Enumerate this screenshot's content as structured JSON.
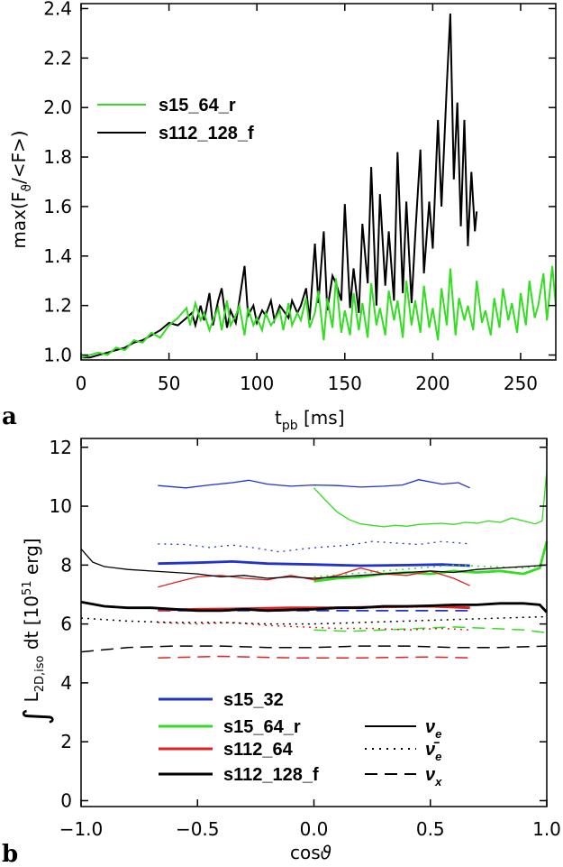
{
  "chart_data": [
    {
      "type": "line",
      "panel_label": "a",
      "xlabel": "t_pb [ms]",
      "ylabel": "max(F_θ/<F>)",
      "xlim": [
        0,
        270
      ],
      "ylim": [
        0.98,
        2.42
      ],
      "xticks": [
        0,
        50,
        100,
        150,
        200,
        250
      ],
      "yticks": [
        1.0,
        1.2,
        1.4,
        1.6,
        1.8,
        2.0,
        2.2,
        2.4
      ],
      "ytick_labels": [
        "1.0",
        "1.2",
        "1.4",
        "1.6",
        "1.8",
        "2.0",
        "2.2",
        "2.4"
      ],
      "legend_placement": "upper-left",
      "series": [
        {
          "name": "s15_64_r",
          "color": "#33dd22",
          "x": [
            0,
            5,
            10,
            15,
            20,
            25,
            30,
            35,
            40,
            45,
            50,
            55,
            60,
            62,
            65,
            68,
            70,
            73,
            75,
            78,
            80,
            83,
            85,
            88,
            90,
            93,
            95,
            98,
            100,
            103,
            105,
            108,
            110,
            113,
            115,
            118,
            120,
            123,
            125,
            128,
            130,
            133,
            135,
            138,
            140,
            143,
            145,
            148,
            150,
            153,
            155,
            158,
            160,
            163,
            165,
            168,
            170,
            173,
            175,
            178,
            180,
            183,
            185,
            188,
            190,
            193,
            195,
            198,
            200,
            203,
            205,
            208,
            210,
            213,
            215,
            218,
            220,
            223,
            225,
            228,
            230,
            233,
            235,
            238,
            240,
            243,
            245,
            248,
            250,
            253,
            255,
            258,
            260,
            263,
            265,
            268,
            270
          ],
          "values": [
            0.99,
            1.0,
            1.01,
            1.0,
            1.03,
            1.02,
            1.06,
            1.05,
            1.09,
            1.07,
            1.12,
            1.15,
            1.19,
            1.12,
            1.21,
            1.14,
            1.17,
            1.1,
            1.14,
            1.19,
            1.1,
            1.22,
            1.12,
            1.16,
            1.2,
            1.08,
            1.19,
            1.12,
            1.15,
            1.1,
            1.17,
            1.12,
            1.14,
            1.18,
            1.1,
            1.21,
            1.12,
            1.17,
            1.14,
            1.23,
            1.11,
            1.17,
            1.26,
            1.06,
            1.23,
            1.11,
            1.31,
            1.09,
            1.18,
            1.08,
            1.25,
            1.1,
            1.21,
            1.07,
            1.29,
            1.12,
            1.19,
            1.08,
            1.26,
            1.14,
            1.22,
            1.07,
            1.3,
            1.12,
            1.22,
            1.09,
            1.28,
            1.11,
            1.19,
            1.06,
            1.27,
            1.12,
            1.35,
            1.08,
            1.23,
            1.14,
            1.2,
            1.1,
            1.3,
            1.13,
            1.18,
            1.08,
            1.23,
            1.11,
            1.27,
            1.14,
            1.21,
            1.09,
            1.25,
            1.12,
            1.3,
            1.15,
            1.2,
            1.33,
            1.14,
            1.36,
            1.2
          ]
        },
        {
          "name": "s112_128_f",
          "color": "#000000",
          "x": [
            0,
            5,
            10,
            15,
            20,
            25,
            30,
            35,
            40,
            45,
            50,
            55,
            60,
            63,
            65,
            68,
            70,
            73,
            75,
            78,
            80,
            83,
            85,
            88,
            90,
            93,
            95,
            98,
            100,
            103,
            105,
            108,
            110,
            113,
            115,
            118,
            120,
            123,
            125,
            128,
            130,
            133,
            135,
            138,
            140,
            143,
            145,
            148,
            150,
            153,
            155,
            158,
            160,
            163,
            165,
            168,
            170,
            173,
            175,
            178,
            180,
            183,
            185,
            188,
            190,
            193,
            195,
            198,
            200,
            203,
            205,
            208,
            210,
            212,
            214,
            216,
            218,
            220,
            222,
            224,
            225
          ],
          "values": [
            0.99,
            0.99,
            1.0,
            1.01,
            1.02,
            1.03,
            1.05,
            1.06,
            1.08,
            1.1,
            1.13,
            1.12,
            1.15,
            1.17,
            1.12,
            1.2,
            1.14,
            1.25,
            1.12,
            1.22,
            1.27,
            1.11,
            1.18,
            1.13,
            1.22,
            1.36,
            1.16,
            1.2,
            1.13,
            1.18,
            1.16,
            1.22,
            1.14,
            1.2,
            1.18,
            1.15,
            1.22,
            1.17,
            1.2,
            1.27,
            1.14,
            1.45,
            1.21,
            1.5,
            1.18,
            1.32,
            1.29,
            1.22,
            1.61,
            1.19,
            1.35,
            1.17,
            1.53,
            1.29,
            1.76,
            1.2,
            1.65,
            1.28,
            1.5,
            1.22,
            1.82,
            1.25,
            1.62,
            1.21,
            1.48,
            1.83,
            1.33,
            1.62,
            1.43,
            1.95,
            1.6,
            2.09,
            2.38,
            1.71,
            2.02,
            1.52,
            1.95,
            1.44,
            1.74,
            1.5,
            1.58
          ]
        }
      ]
    },
    {
      "type": "line",
      "panel_label": "b",
      "xlabel": "cosθ",
      "ylabel": "∫ L_2D,iso dt [10^51 erg]",
      "xlim": [
        -1.0,
        1.0
      ],
      "ylim": [
        -0.2,
        12.3
      ],
      "xticks": [
        -1.0,
        -0.5,
        0.0,
        0.5,
        1.0
      ],
      "xtick_labels": [
        "−1.0",
        "−0.5",
        "0.0",
        "0.5",
        "1.0"
      ],
      "yticks": [
        0,
        2,
        4,
        6,
        8,
        10,
        12
      ],
      "legend_placement": "lower-left",
      "legend_models": [
        {
          "name": "s15_32",
          "color": "#2233cc"
        },
        {
          "name": "s15_64_r",
          "color": "#33dd22"
        },
        {
          "name": "s112_64",
          "color": "#dd2222"
        },
        {
          "name": "s112_128_f",
          "color": "#000000"
        }
      ],
      "legend_flavors": [
        {
          "name": "ν_e",
          "style": "solid"
        },
        {
          "name": "ν̄_e",
          "style": "dotted"
        },
        {
          "name": "ν_x",
          "style": "dashed"
        }
      ],
      "series": [
        {
          "model": "s15_32",
          "flavor": "nu_e",
          "color": "#2233cc",
          "style": "solid",
          "width": 1.3,
          "x": [
            -0.67,
            -0.55,
            -0.45,
            -0.35,
            -0.28,
            -0.2,
            -0.1,
            0.0,
            0.1,
            0.2,
            0.3,
            0.38,
            0.45,
            0.55,
            0.62,
            0.67
          ],
          "values": [
            10.7,
            10.62,
            10.72,
            10.8,
            10.88,
            10.75,
            10.68,
            10.72,
            10.7,
            10.65,
            10.68,
            10.72,
            10.9,
            10.75,
            10.8,
            10.62
          ]
        },
        {
          "model": "s15_32",
          "flavor": "nubar_e",
          "color": "#2233cc",
          "style": "dotted",
          "width": 1.3,
          "x": [
            -0.67,
            -0.55,
            -0.45,
            -0.35,
            -0.25,
            -0.15,
            -0.05,
            0.05,
            0.15,
            0.25,
            0.35,
            0.45,
            0.55,
            0.67
          ],
          "values": [
            8.72,
            8.7,
            8.6,
            8.68,
            8.58,
            8.45,
            8.55,
            8.62,
            8.68,
            8.8,
            8.75,
            8.7,
            8.8,
            8.72
          ]
        },
        {
          "model": "s15_32",
          "flavor": "nu_x",
          "color": "#2233cc",
          "style": "solid",
          "width": 2.8,
          "x": [
            -0.67,
            -0.5,
            -0.35,
            -0.2,
            0.0,
            0.2,
            0.4,
            0.55,
            0.67
          ],
          "values": [
            8.05,
            8.08,
            8.12,
            8.05,
            8.02,
            7.98,
            8.0,
            8.02,
            7.98
          ]
        },
        {
          "model": "s15_32",
          "flavor": "nu_x_dashed",
          "color": "#2233cc",
          "style": "dashed",
          "width": 1.8,
          "x": [
            -0.67,
            -0.3,
            0.0,
            0.3,
            0.67
          ],
          "values": [
            6.45,
            6.45,
            6.45,
            6.45,
            6.45
          ]
        },
        {
          "model": "s15_64_r",
          "flavor": "nu_e",
          "color": "#33dd22",
          "style": "solid",
          "width": 1.3,
          "x": [
            0.0,
            0.05,
            0.1,
            0.15,
            0.2,
            0.25,
            0.3,
            0.35,
            0.4,
            0.45,
            0.5,
            0.55,
            0.6,
            0.65,
            0.7,
            0.75,
            0.8,
            0.85,
            0.9,
            0.95,
            0.98,
            1.0
          ],
          "values": [
            10.62,
            10.2,
            9.8,
            9.55,
            9.4,
            9.35,
            9.3,
            9.35,
            9.32,
            9.38,
            9.4,
            9.42,
            9.38,
            9.45,
            9.42,
            9.5,
            9.45,
            9.6,
            9.5,
            9.4,
            9.5,
            11.2
          ]
        },
        {
          "model": "s15_64_r",
          "flavor": "nu_x_thick",
          "color": "#33dd22",
          "style": "solid",
          "width": 2.8,
          "x": [
            0.0,
            0.1,
            0.2,
            0.3,
            0.4,
            0.5,
            0.6,
            0.7,
            0.8,
            0.9,
            0.97,
            1.0
          ],
          "values": [
            7.45,
            7.55,
            7.6,
            7.7,
            7.75,
            7.7,
            7.8,
            7.75,
            7.8,
            7.7,
            7.9,
            8.8
          ]
        },
        {
          "model": "s15_64_r",
          "flavor": "nubar_e",
          "color": "#33dd22",
          "style": "dotted",
          "width": 1.5,
          "x": [
            0.0,
            0.15,
            0.3,
            0.45,
            0.6,
            0.75,
            0.9,
            1.0
          ],
          "values": [
            7.6,
            7.7,
            7.8,
            7.9,
            8.0,
            7.95,
            7.9,
            8.0
          ]
        },
        {
          "model": "s15_64_r",
          "flavor": "nu_x",
          "color": "#33dd22",
          "style": "dashed",
          "width": 1.5,
          "x": [
            0.0,
            0.15,
            0.3,
            0.45,
            0.6,
            0.75,
            0.9,
            1.0
          ],
          "values": [
            5.8,
            5.75,
            5.8,
            5.85,
            5.9,
            5.85,
            5.8,
            5.7
          ]
        },
        {
          "model": "s112_64",
          "flavor": "nu_e",
          "color": "#dd2222",
          "style": "solid",
          "width": 1.3,
          "x": [
            -0.67,
            -0.6,
            -0.5,
            -0.4,
            -0.3,
            -0.2,
            -0.1,
            0.0,
            0.1,
            0.2,
            0.3,
            0.4,
            0.5,
            0.6,
            0.67
          ],
          "values": [
            7.25,
            7.4,
            7.6,
            7.65,
            7.55,
            7.5,
            7.65,
            7.5,
            7.65,
            7.9,
            7.7,
            7.65,
            7.8,
            7.55,
            7.3
          ]
        },
        {
          "model": "s112_64",
          "flavor": "nu_x_thick",
          "color": "#dd2222",
          "style": "solid",
          "width": 2.8,
          "x": [
            -0.67,
            -0.5,
            -0.3,
            -0.1,
            0.1,
            0.3,
            0.5,
            0.67
          ],
          "values": [
            6.48,
            6.5,
            6.52,
            6.55,
            6.55,
            6.58,
            6.6,
            6.55
          ]
        },
        {
          "model": "s112_64",
          "flavor": "nubar_e",
          "color": "#dd2222",
          "style": "dotted",
          "width": 1.5,
          "x": [
            -0.67,
            -0.5,
            -0.35,
            -0.2,
            -0.05,
            0.1,
            0.25,
            0.4,
            0.55,
            0.67
          ],
          "values": [
            6.05,
            6.0,
            6.05,
            5.95,
            5.9,
            5.85,
            5.85,
            5.8,
            5.85,
            5.8
          ]
        },
        {
          "model": "s112_64",
          "flavor": "nu_x",
          "color": "#dd2222",
          "style": "dashed",
          "width": 1.5,
          "x": [
            -0.67,
            -0.4,
            -0.1,
            0.2,
            0.5,
            0.67
          ],
          "values": [
            4.85,
            4.9,
            4.85,
            4.85,
            4.88,
            4.85
          ]
        },
        {
          "model": "s112_128_f",
          "flavor": "nu_e",
          "color": "#000000",
          "style": "solid",
          "width": 1.3,
          "x": [
            -1.0,
            -0.95,
            -0.9,
            -0.8,
            -0.7,
            -0.6,
            -0.5,
            -0.4,
            -0.3,
            -0.2,
            -0.1,
            0.0,
            0.1,
            0.2,
            0.3,
            0.4,
            0.5,
            0.6,
            0.7,
            0.8,
            0.9,
            1.0
          ],
          "values": [
            8.55,
            8.1,
            7.95,
            7.85,
            7.8,
            7.75,
            7.7,
            7.6,
            7.65,
            7.55,
            7.6,
            7.55,
            7.6,
            7.65,
            7.7,
            7.75,
            7.8,
            7.75,
            7.85,
            7.9,
            7.95,
            8.0
          ]
        },
        {
          "model": "s112_128_f",
          "flavor": "nu_x_thick",
          "color": "#000000",
          "style": "solid",
          "width": 2.8,
          "x": [
            -1.0,
            -0.9,
            -0.8,
            -0.7,
            -0.6,
            -0.5,
            -0.4,
            -0.3,
            -0.2,
            -0.1,
            0.0,
            0.1,
            0.2,
            0.3,
            0.4,
            0.5,
            0.6,
            0.7,
            0.8,
            0.9,
            0.97,
            1.0
          ],
          "values": [
            6.75,
            6.6,
            6.55,
            6.55,
            6.5,
            6.45,
            6.45,
            6.5,
            6.45,
            6.48,
            6.5,
            6.55,
            6.55,
            6.6,
            6.6,
            6.62,
            6.65,
            6.65,
            6.7,
            6.7,
            6.65,
            6.4
          ]
        },
        {
          "model": "s112_128_f",
          "flavor": "nubar_e",
          "color": "#000000",
          "style": "dotted",
          "width": 1.5,
          "x": [
            -1.0,
            -0.8,
            -0.6,
            -0.4,
            -0.2,
            0.0,
            0.2,
            0.4,
            0.6,
            0.8,
            1.0
          ],
          "values": [
            6.2,
            6.1,
            6.05,
            6.05,
            6.0,
            6.0,
            6.05,
            6.1,
            6.15,
            6.2,
            6.25
          ]
        },
        {
          "model": "s112_128_f",
          "flavor": "nu_x",
          "color": "#000000",
          "style": "dashed",
          "width": 1.5,
          "x": [
            -1.0,
            -0.8,
            -0.6,
            -0.4,
            -0.2,
            0.0,
            0.2,
            0.4,
            0.6,
            0.8,
            1.0
          ],
          "values": [
            5.05,
            5.2,
            5.25,
            5.25,
            5.2,
            5.2,
            5.25,
            5.25,
            5.2,
            5.2,
            5.25
          ]
        }
      ]
    }
  ]
}
